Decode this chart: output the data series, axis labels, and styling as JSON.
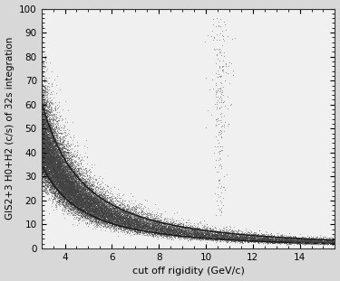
{
  "title": "",
  "xlabel": "cut off rigidity (GeV/c)",
  "ylabel": "GIS2+3 H0+H2 (c/s) of 32s integration",
  "xlim": [
    3.0,
    15.5
  ],
  "ylim": [
    0,
    100
  ],
  "xticks": [
    4,
    6,
    8,
    10,
    12,
    14
  ],
  "yticks": [
    0,
    10,
    20,
    30,
    40,
    50,
    60,
    70,
    80,
    90,
    100
  ],
  "background_color": "#d8d8d8",
  "plot_background": "#f0f0f0",
  "upper_curve_A": 420.0,
  "upper_curve_b": 1.75,
  "lower_curve_A": 240.0,
  "lower_curve_b": 1.75,
  "scatter_mean_A": 320.0,
  "scatter_mean_b": 1.75,
  "scatter_seed": 42,
  "scatter_n_main": 20000,
  "scatter_n_vertical": 200,
  "vertical_x_center": 10.6,
  "figsize": [
    3.75,
    3.11
  ],
  "dpi": 100
}
